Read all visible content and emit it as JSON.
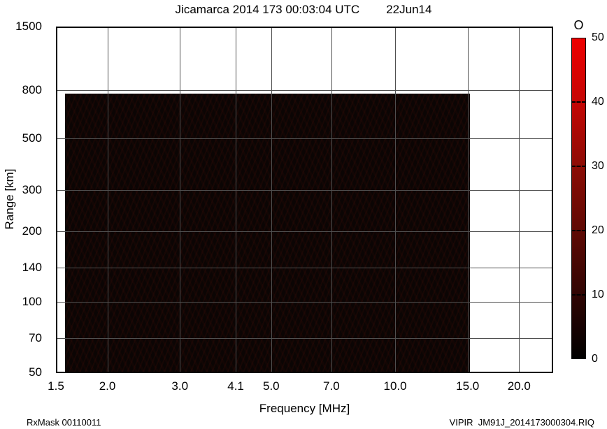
{
  "header": {
    "title": "Jicamarca 2014 173 00:03:04 UTC",
    "date": "22Jun14"
  },
  "chart_data": {
    "type": "heatmap",
    "title": "Jicamarca 2014 173 00:03:04 UTC  22Jun14",
    "xlabel": "Frequency [MHz]",
    "ylabel": "Range [km]",
    "x_scale": "log",
    "y_scale": "log",
    "xlim": [
      1.5,
      24.2
    ],
    "ylim": [
      50,
      1500
    ],
    "grid": true,
    "x_ticks": [
      {
        "value": 1.5,
        "label": "1.5"
      },
      {
        "value": 2.0,
        "label": "2.0"
      },
      {
        "value": 3.0,
        "label": "3.0"
      },
      {
        "value": 4.1,
        "label": "4.1"
      },
      {
        "value": 5.0,
        "label": "5.0"
      },
      {
        "value": 7.0,
        "label": "7.0"
      },
      {
        "value": 10.0,
        "label": "10.0"
      },
      {
        "value": 15.0,
        "label": "15.0"
      },
      {
        "value": 20.0,
        "label": "20.0"
      }
    ],
    "y_ticks": [
      {
        "value": 50,
        "label": "50"
      },
      {
        "value": 70,
        "label": "70"
      },
      {
        "value": 100,
        "label": "100"
      },
      {
        "value": 140,
        "label": "140"
      },
      {
        "value": 200,
        "label": "200"
      },
      {
        "value": 300,
        "label": "300"
      },
      {
        "value": 500,
        "label": "500"
      },
      {
        "value": 800,
        "label": "800"
      },
      {
        "value": 1500,
        "label": "1500"
      }
    ],
    "data_region": {
      "f_start_mhz": 1.58,
      "f_end_mhz": 15.2,
      "range_start_km": 50,
      "range_end_km": 775,
      "amplitude": 0,
      "note": "uniform near-zero echo amplitude (black) across sounded band"
    },
    "colorbar": {
      "label": "O",
      "min": 0,
      "max": 50,
      "ticks": [
        0,
        10,
        20,
        30,
        40,
        50
      ],
      "gradient_stops": [
        "#000000",
        "#300503",
        "#5f0a04",
        "#8c0c05",
        "#c40604",
        "#ee0000"
      ]
    }
  },
  "footer": {
    "left": "RxMask 00110011",
    "right": "VIPIR  JM91J_2014173000304.RIQ"
  }
}
